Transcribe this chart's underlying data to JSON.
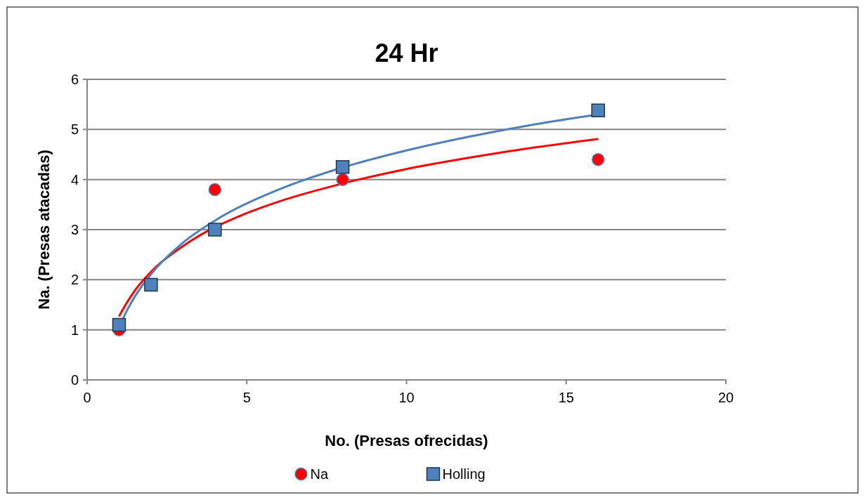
{
  "chart_data": {
    "type": "scatter",
    "title": "24 Hr",
    "xlabel": "No. (Presas ofrecidas)",
    "ylabel": "Na. (Presas atacadas)",
    "x": [
      1,
      2,
      4,
      8,
      16
    ],
    "series": [
      {
        "name": "Na",
        "color": "#ff0000",
        "marker": "circle",
        "values": [
          1.0,
          null,
          3.8,
          4.0,
          4.4
        ]
      },
      {
        "name": "Holling",
        "color": "#4f81bd",
        "marker": "square",
        "values": [
          1.1,
          1.9,
          3.0,
          4.25,
          5.38
        ]
      },
      {
        "type": "line",
        "color": "#ff0000",
        "marker": "none",
        "x": [
          1,
          1.25,
          1.5,
          2,
          3,
          5,
          6,
          8,
          10,
          12,
          14,
          16
        ],
        "values": [
          1.27,
          1.55,
          1.79,
          2.16,
          2.67,
          3.33,
          3.56,
          3.92,
          4.21,
          4.44,
          4.64,
          4.81
        ]
      },
      {
        "type": "line",
        "color": "#4f81bd",
        "marker": "none",
        "x": [
          1,
          1.25,
          1.5,
          2,
          3,
          4,
          6,
          8,
          10,
          12,
          14,
          16
        ],
        "values": [
          1.05,
          1.39,
          1.67,
          2.11,
          2.74,
          3.18,
          3.8,
          4.24,
          4.58,
          4.86,
          5.1,
          5.3
        ]
      }
    ],
    "xlim": [
      0,
      20
    ],
    "xticks": [
      0,
      5,
      10,
      15,
      20
    ],
    "ylim": [
      0,
      6
    ],
    "yticks": [
      0,
      1,
      2,
      3,
      4,
      5,
      6
    ],
    "grid": "y",
    "legend": "bottom",
    "line_style": "solid"
  }
}
